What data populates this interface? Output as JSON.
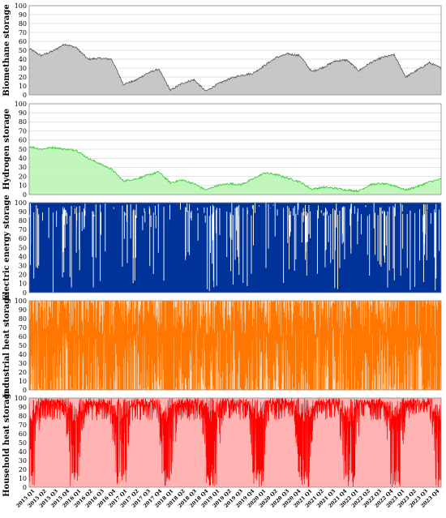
{
  "chart_data": [
    {
      "type": "area",
      "ylabel": "Biomethane storage",
      "ylim": [
        0,
        100
      ],
      "yticks": [
        0,
        10,
        20,
        30,
        40,
        50,
        60,
        70,
        80,
        90,
        100
      ],
      "grid": true,
      "color": "#555555",
      "fill": "#bdbdbd",
      "x": [
        "2015 Q1",
        "2015 Q2",
        "2015 Q3",
        "2015 Q4",
        "2016 Q1",
        "2016 Q2",
        "2016 Q3",
        "2016 Q4",
        "2017 Q1",
        "2017 Q2",
        "2017 Q3",
        "2017 Q4",
        "2018 Q1",
        "2018 Q2",
        "2018 Q3",
        "2018 Q4",
        "2019 Q1",
        "2019 Q2",
        "2019 Q3",
        "2019 Q4",
        "2020 Q1",
        "2020 Q2",
        "2020 Q3",
        "2020 Q4",
        "2021 Q1",
        "2021 Q2",
        "2021 Q3",
        "2021 Q4",
        "2022 Q1",
        "2022 Q2",
        "2022 Q3",
        "2022 Q4",
        "2023 Q1",
        "2023 Q2",
        "2023 Q3",
        "2023 Q4"
      ],
      "values": [
        52,
        44,
        49,
        57,
        53,
        40,
        41,
        40,
        12,
        16,
        24,
        29,
        5,
        13,
        17,
        4,
        12,
        18,
        22,
        24,
        33,
        42,
        46,
        44,
        26,
        31,
        38,
        39,
        27,
        36,
        42,
        45,
        20,
        28,
        36,
        30
      ]
    },
    {
      "type": "area",
      "ylabel": "Hydrogen storage",
      "ylim": [
        0,
        100
      ],
      "yticks": [
        0,
        10,
        20,
        30,
        40,
        50,
        60,
        70,
        80,
        90,
        100
      ],
      "grid": true,
      "color": "#2ecc2e",
      "fill": "#b8f5b0",
      "x": [
        "2015 Q1",
        "2015 Q2",
        "2015 Q3",
        "2015 Q4",
        "2016 Q1",
        "2016 Q2",
        "2016 Q3",
        "2016 Q4",
        "2017 Q1",
        "2017 Q2",
        "2017 Q3",
        "2017 Q4",
        "2018 Q1",
        "2018 Q2",
        "2018 Q3",
        "2018 Q4",
        "2019 Q1",
        "2019 Q2",
        "2019 Q3",
        "2019 Q4",
        "2020 Q1",
        "2020 Q2",
        "2020 Q3",
        "2020 Q4",
        "2021 Q1",
        "2021 Q2",
        "2021 Q3",
        "2021 Q4",
        "2022 Q1",
        "2022 Q2",
        "2022 Q3",
        "2022 Q4",
        "2023 Q1",
        "2023 Q2",
        "2023 Q3",
        "2023 Q4"
      ],
      "values": [
        53,
        50,
        52,
        50,
        49,
        40,
        34,
        28,
        15,
        17,
        21,
        25,
        13,
        16,
        12,
        5,
        10,
        12,
        11,
        17,
        24,
        22,
        18,
        14,
        6,
        8,
        7,
        5,
        4,
        11,
        12,
        10,
        5,
        9,
        14,
        17
      ]
    },
    {
      "type": "heatmap",
      "ylabel": "Electric energy storage",
      "ylim": [
        0,
        100
      ],
      "yticks": [
        0,
        10,
        20,
        30,
        40,
        50,
        60,
        70,
        80,
        90,
        100
      ],
      "color": "#003399",
      "description_values": "dense daily charge/discharge cycles between 0 and 100"
    },
    {
      "type": "area",
      "ylabel": "Industrial heat storage",
      "ylim": [
        0,
        100
      ],
      "yticks": [
        0,
        10,
        20,
        30,
        40,
        50,
        60,
        70,
        80,
        90,
        100
      ],
      "color": "#ff7700",
      "fill": "#ffd6b3"
    },
    {
      "type": "area",
      "ylabel": "Household heat storage",
      "ylim": [
        0,
        100
      ],
      "yticks": [
        0,
        10,
        20,
        30,
        40,
        50,
        60,
        70,
        80,
        90,
        100
      ],
      "color": "#ff0000",
      "fill": "#ffb3b3"
    }
  ],
  "xticks": [
    "2015 Q1",
    "2015 Q2",
    "2015 Q3",
    "2015 Q4",
    "2016 Q1",
    "2016 Q2",
    "2016 Q3",
    "2016 Q4",
    "2017 Q1",
    "2017 Q2",
    "2017 Q3",
    "2017 Q4",
    "2018 Q1",
    "2018 Q2",
    "2018 Q3",
    "2018 Q4",
    "2019 Q1",
    "2019 Q2",
    "2019 Q3",
    "2019 Q4",
    "2020 Q1",
    "2020 Q2",
    "2020 Q3",
    "2020 Q4",
    "2021 Q1",
    "2021 Q2",
    "2021 Q3",
    "2021 Q4",
    "2022 Q1",
    "2022 Q2",
    "2022 Q3",
    "2022 Q4",
    "2023 Q1",
    "2023 Q2",
    "2023 Q3",
    "2023 Q4"
  ]
}
